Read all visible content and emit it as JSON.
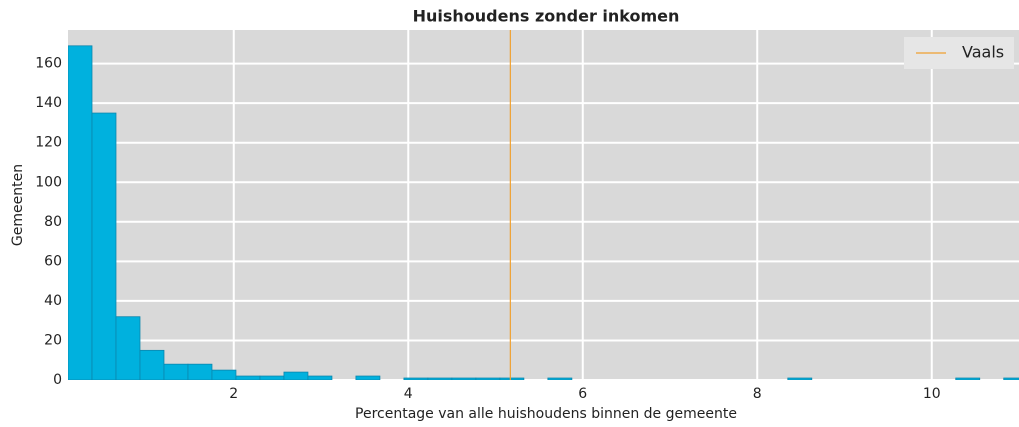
{
  "chart_data": {
    "type": "histogram",
    "title": "Huishoudens zonder inkomen",
    "x_label": "Percentage van alle huishoudens binnen de gemeente",
    "y_label": "Gemeenten",
    "bins": [
      0.1,
      0.375,
      0.65,
      0.925,
      1.2,
      1.475,
      1.75,
      2.025,
      2.3,
      2.575,
      2.85,
      3.125,
      3.4,
      3.675,
      3.95,
      4.225,
      4.5,
      4.775,
      5.05,
      5.325,
      5.6,
      5.875,
      6.15,
      6.425,
      6.7,
      6.975,
      7.25,
      7.525,
      7.8,
      8.075,
      8.35,
      8.625,
      8.9,
      9.175,
      9.45,
      9.725,
      10.0,
      10.275,
      10.55,
      10.825,
      11.1
    ],
    "counts": [
      169,
      135,
      32,
      15,
      8,
      8,
      5,
      2,
      2,
      4,
      2,
      0,
      2,
      0,
      1,
      1,
      1,
      1,
      1,
      0,
      1,
      0,
      0,
      0,
      0,
      0,
      0,
      0,
      0,
      0,
      1,
      0,
      0,
      0,
      0,
      0,
      0,
      1,
      0,
      1
    ],
    "color": "#00b1de",
    "edge_color": "#0b86ad",
    "reference_line": {
      "name": "Vaals",
      "x": 5.17,
      "color": "#f0a030"
    },
    "xlim": [
      0.1,
      11.0
    ],
    "xticks": [
      2,
      4,
      6,
      8,
      10
    ],
    "ylim": [
      0,
      177
    ],
    "yticks": [
      0,
      20,
      40,
      60,
      80,
      100,
      120,
      140,
      160
    ],
    "grid": true,
    "legend": "upper right"
  }
}
